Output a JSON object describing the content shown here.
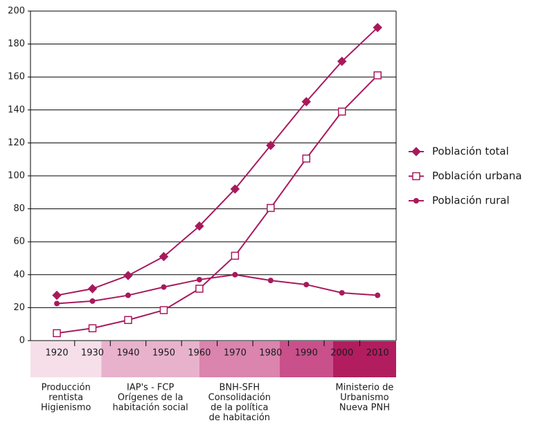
{
  "chart_data": {
    "type": "line",
    "x": [
      1920,
      1930,
      1940,
      1950,
      1960,
      1970,
      1980,
      1990,
      2000,
      2010
    ],
    "xlim": [
      1912.6,
      2015.2
    ],
    "ylim": [
      0,
      200
    ],
    "yticks": [
      0,
      20,
      40,
      60,
      80,
      100,
      120,
      140,
      160,
      180,
      200
    ],
    "grid": true,
    "legend": "right",
    "series": [
      {
        "name": "Población total",
        "color": "#a8195c",
        "marker": "square",
        "values": [
          27.5,
          31.5,
          39.5,
          51,
          69.5,
          92,
          118.5,
          145,
          169.5,
          190
        ]
      },
      {
        "name": "Población urbana",
        "color": "#a8195c",
        "marker": "square-open",
        "values": [
          4.5,
          7.5,
          12.5,
          18.5,
          31.5,
          51.5,
          80.5,
          110.5,
          139,
          161
        ]
      },
      {
        "name": "Población rural",
        "color": "#a8195c",
        "marker": "circle",
        "values": [
          22.5,
          24,
          27.5,
          32.5,
          37,
          40,
          36.5,
          34,
          29,
          27.5
        ]
      }
    ],
    "periods": [
      {
        "from": 1912.6,
        "to": 1932.5,
        "color": "#f6dfe9",
        "label": [
          "Producción",
          "rentista",
          "Higienismo"
        ]
      },
      {
        "from": 1932.5,
        "to": 1960,
        "color": "#e8b2cd",
        "label": [
          "IAP's - FCP",
          "Orígenes de la",
          "habitación social"
        ]
      },
      {
        "from": 1960,
        "to": 1982.5,
        "color": "#da84ae",
        "label": [
          "BNH-SFH",
          "Consolidación",
          "de la política",
          "de habitación"
        ]
      },
      {
        "from": 1982.5,
        "to": 1997.5,
        "color": "#c9508b",
        "label": []
      },
      {
        "from": 1997.5,
        "to": 2015.2,
        "color": "#b21d60",
        "label": [
          "Ministerio de",
          "Urbanismo",
          "Nueva PNH"
        ]
      }
    ]
  }
}
